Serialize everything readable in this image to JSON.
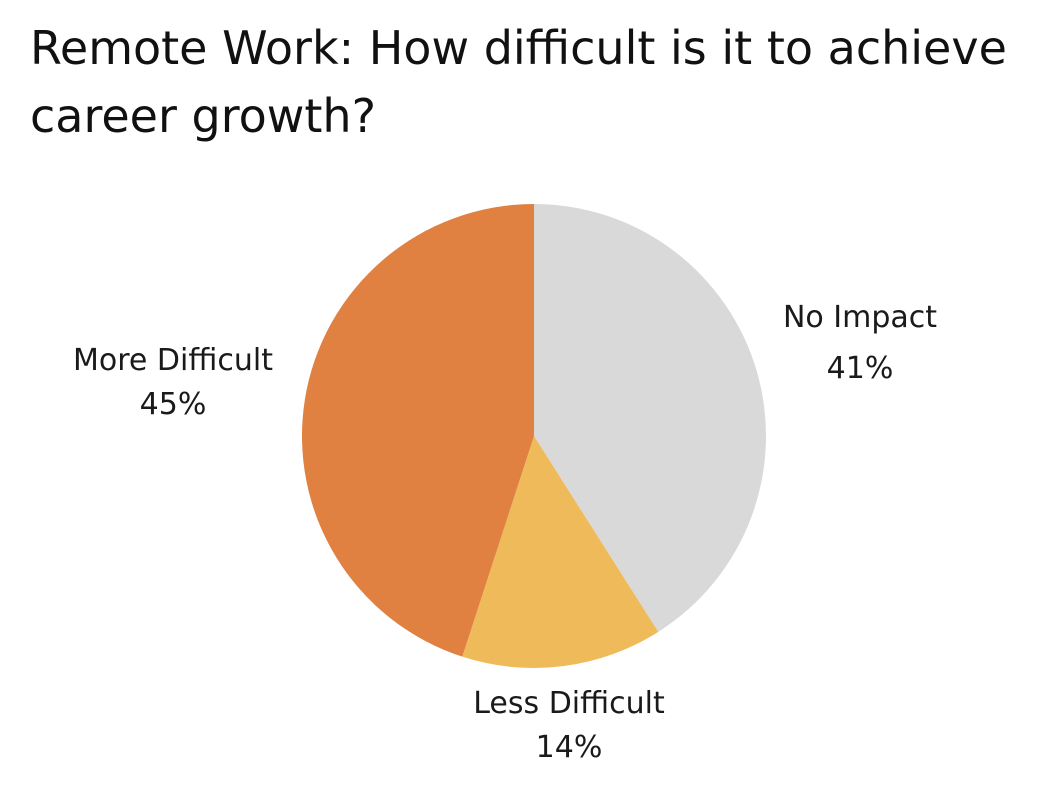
{
  "chart_data": {
    "type": "pie",
    "title": "Remote Work: How difficult is it to achieve career growth?",
    "slices": [
      {
        "label": "No Impact",
        "value": 41,
        "value_label": "41%",
        "color": "#d9d9d9"
      },
      {
        "label": "Less Difficult",
        "value": 14,
        "value_label": "14%",
        "color": "#efbb5a"
      },
      {
        "label": "More Difficult",
        "value": 45,
        "value_label": "45%",
        "color": "#e08041"
      }
    ],
    "start": "12 o'clock",
    "direction": "clockwise"
  }
}
